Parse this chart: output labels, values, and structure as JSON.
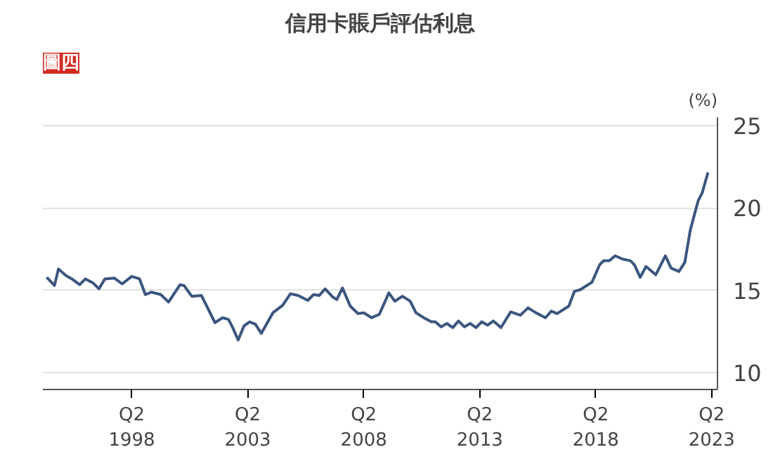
{
  "chart_data": {
    "type": "line",
    "title": "信用卡賬戶評估利息",
    "ylabel": "(%)",
    "annotations": [
      "圖四"
    ],
    "x": [
      "1994-08",
      "1994-12",
      "1995-02",
      "1995-06",
      "1995-09",
      "1996-01",
      "1996-04",
      "1996-08",
      "1996-11",
      "1997-02",
      "1997-07",
      "1997-11",
      "1998-04",
      "1998-08",
      "1998-11",
      "1999-02",
      "1999-07",
      "1999-11",
      "2000-05",
      "2000-07",
      "2000-11",
      "2001-04",
      "2001-11",
      "2002-03",
      "2002-06",
      "2002-08",
      "2002-11",
      "2003-02",
      "2003-05",
      "2003-08",
      "2003-11",
      "2004-05",
      "2004-10",
      "2005-02",
      "2005-06",
      "2005-11",
      "2006-02",
      "2006-05",
      "2006-08",
      "2006-12",
      "2007-02",
      "2007-05",
      "2007-09",
      "2008-01",
      "2008-04",
      "2008-08",
      "2008-12",
      "2009-05",
      "2009-08",
      "2009-12",
      "2010-04",
      "2010-07",
      "2010-11",
      "2011-03",
      "2011-05",
      "2011-08",
      "2011-11",
      "2012-02",
      "2012-05",
      "2012-08",
      "2012-11",
      "2013-02",
      "2013-05",
      "2013-08",
      "2013-11",
      "2014-03",
      "2014-08",
      "2015-01",
      "2015-05",
      "2015-09",
      "2016-02",
      "2016-05",
      "2016-08",
      "2017-02",
      "2017-05",
      "2017-08",
      "2018-02",
      "2018-06",
      "2018-08",
      "2018-11",
      "2019-02",
      "2019-06",
      "2019-10",
      "2019-12",
      "2020-03",
      "2020-06",
      "2020-11",
      "2021-04",
      "2021-07",
      "2021-11",
      "2022-02",
      "2022-05",
      "2022-09",
      "2022-11",
      "2023-02"
    ],
    "series": [
      {
        "color": "#3b5680",
        "values": [
          15.8,
          15.3,
          16.3,
          15.9,
          15.7,
          15.35,
          15.7,
          15.45,
          15.1,
          15.7,
          15.75,
          15.4,
          15.85,
          15.7,
          14.75,
          14.9,
          14.75,
          14.3,
          15.35,
          15.3,
          14.65,
          14.7,
          13.05,
          13.35,
          13.25,
          12.8,
          12.0,
          12.85,
          13.1,
          12.95,
          12.4,
          13.65,
          14.1,
          14.8,
          14.7,
          14.4,
          14.75,
          14.7,
          15.1,
          14.6,
          14.45,
          15.15,
          14.05,
          13.6,
          13.65,
          13.35,
          13.55,
          14.85,
          14.35,
          14.65,
          14.35,
          13.65,
          13.35,
          13.1,
          13.1,
          12.8,
          13.0,
          12.75,
          13.15,
          12.8,
          13.0,
          12.75,
          13.1,
          12.9,
          13.15,
          12.75,
          13.7,
          13.5,
          13.95,
          13.65,
          13.35,
          13.75,
          13.6,
          14.05,
          14.95,
          15.05,
          15.5,
          16.55,
          16.8,
          16.8,
          17.1,
          16.9,
          16.8,
          16.55,
          15.8,
          16.45,
          15.95,
          17.1,
          16.35,
          16.15,
          16.7,
          18.7,
          20.45,
          20.9,
          22.15
        ]
      }
    ],
    "xlim": [
      "1994-06",
      "2023-07"
    ],
    "xticks": [
      {
        "value": "1998-04",
        "label": "Q2\n1998"
      },
      {
        "value": "2003-04",
        "label": "Q2\n2003"
      },
      {
        "value": "2008-04",
        "label": "Q2\n2008"
      },
      {
        "value": "2013-04",
        "label": "Q2\n2013"
      },
      {
        "value": "2018-04",
        "label": "Q2\n2018"
      },
      {
        "value": "2023-04",
        "label": "Q2\n2023"
      }
    ],
    "ylim": [
      9,
      25.5
    ],
    "yticks": [
      10,
      15,
      20,
      25
    ],
    "grid": "y",
    "marker": "none",
    "line_style": "solid"
  }
}
